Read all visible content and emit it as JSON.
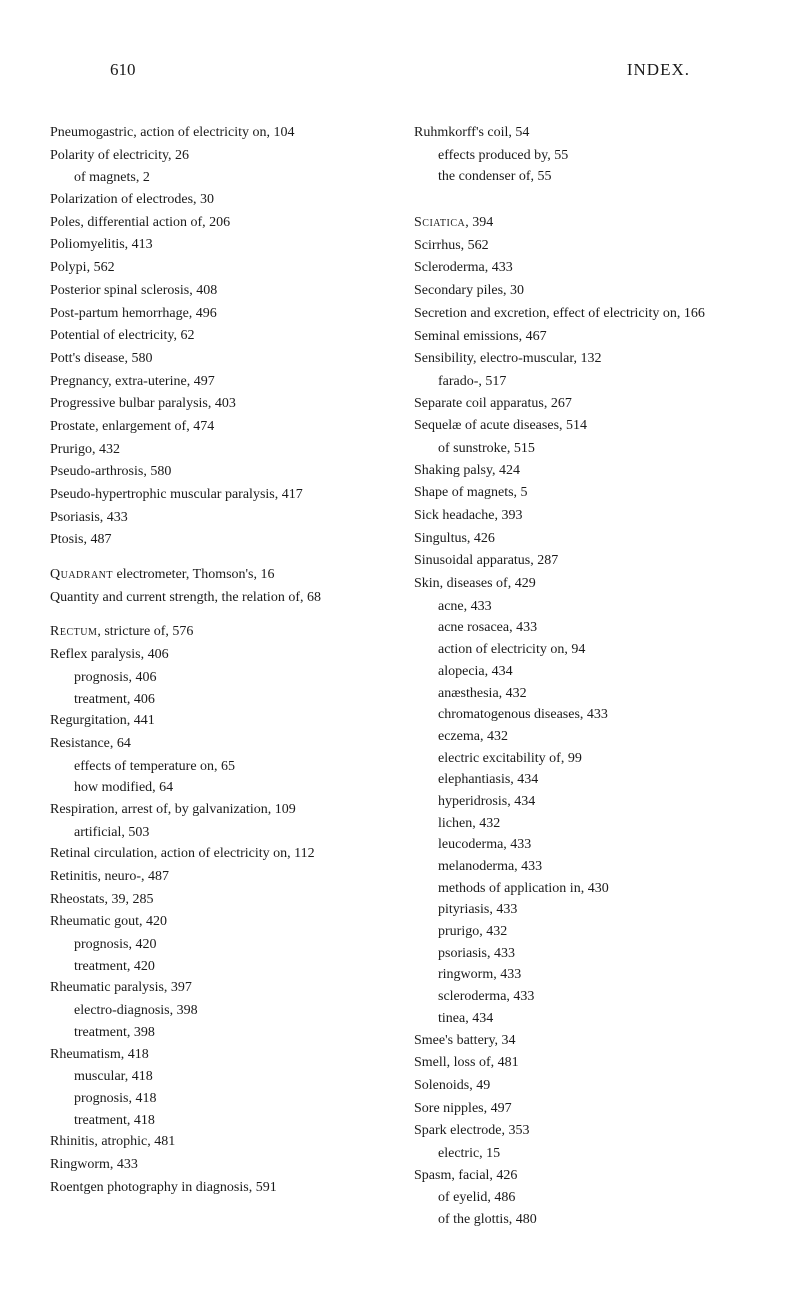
{
  "typography": {
    "body_font": "Georgia, Times New Roman, serif",
    "body_fontsize": 14,
    "header_fontsize": 17,
    "line_height": 1.55,
    "text_color": "#1a1a1a",
    "background_color": "#ffffff"
  },
  "header": {
    "page_number": "610",
    "title": "INDEX."
  },
  "left_column": [
    {
      "text": "Pneumogastric, action of electricity on, 104",
      "type": "entry"
    },
    {
      "text": "Polarity of electricity, 26",
      "type": "entry"
    },
    {
      "text": "of magnets, 2",
      "type": "sub1"
    },
    {
      "text": "Polarization of electrodes, 30",
      "type": "entry"
    },
    {
      "text": "Poles, differential action of, 206",
      "type": "entry"
    },
    {
      "text": "Poliomyelitis, 413",
      "type": "entry"
    },
    {
      "text": "Polypi, 562",
      "type": "entry"
    },
    {
      "text": "Posterior spinal sclerosis, 408",
      "type": "entry"
    },
    {
      "text": "Post-partum hemorrhage, 496",
      "type": "entry"
    },
    {
      "text": "Potential of electricity, 62",
      "type": "entry"
    },
    {
      "text": "Pott's disease, 580",
      "type": "entry"
    },
    {
      "text": "Pregnancy, extra-uterine, 497",
      "type": "entry"
    },
    {
      "text": "Progressive bulbar paralysis, 403",
      "type": "entry"
    },
    {
      "text": "Prostate, enlargement of, 474",
      "type": "entry"
    },
    {
      "text": "Prurigo, 432",
      "type": "entry"
    },
    {
      "text": "Pseudo-arthrosis, 580",
      "type": "entry"
    },
    {
      "text": "Pseudo-hypertrophic muscular paralysis, 417",
      "type": "entry"
    },
    {
      "text": "Psoriasis, 433",
      "type": "entry"
    },
    {
      "text": "Ptosis, 487",
      "type": "entry"
    },
    {
      "type": "gap"
    },
    {
      "smallcaps": "Quadrant",
      "rest": " electrometer, Thomson's, 16",
      "type": "entry"
    },
    {
      "text": "Quantity and current strength, the relation of, 68",
      "type": "entry"
    },
    {
      "type": "gap"
    },
    {
      "smallcaps": "Rectum",
      "rest": ", stricture of, 576",
      "type": "entry"
    },
    {
      "text": "Reflex paralysis, 406",
      "type": "entry"
    },
    {
      "text": "prognosis, 406",
      "type": "sub1"
    },
    {
      "text": "treatment, 406",
      "type": "sub1"
    },
    {
      "text": "Regurgitation, 441",
      "type": "entry"
    },
    {
      "text": "Resistance, 64",
      "type": "entry"
    },
    {
      "text": "effects of temperature on, 65",
      "type": "sub1"
    },
    {
      "text": "how modified, 64",
      "type": "sub1"
    },
    {
      "text": "Respiration, arrest of, by galvanization, 109",
      "type": "entry"
    },
    {
      "text": "artificial, 503",
      "type": "sub1"
    },
    {
      "text": "Retinal circulation, action of electricity on, 112",
      "type": "entry"
    },
    {
      "text": "Retinitis, neuro-, 487",
      "type": "entry"
    },
    {
      "text": "Rheostats, 39, 285",
      "type": "entry"
    },
    {
      "text": "Rheumatic gout, 420",
      "type": "entry"
    },
    {
      "text": "prognosis, 420",
      "type": "sub1"
    },
    {
      "text": "treatment, 420",
      "type": "sub1"
    },
    {
      "text": "Rheumatic paralysis, 397",
      "type": "entry"
    },
    {
      "text": "electro-diagnosis, 398",
      "type": "sub1"
    },
    {
      "text": "treatment, 398",
      "type": "sub1"
    },
    {
      "text": "Rheumatism, 418",
      "type": "entry"
    },
    {
      "text": "muscular, 418",
      "type": "sub1"
    },
    {
      "text": "prognosis, 418",
      "type": "sub1"
    },
    {
      "text": "treatment, 418",
      "type": "sub1"
    },
    {
      "text": "Rhinitis, atrophic, 481",
      "type": "entry"
    },
    {
      "text": "Ringworm, 433",
      "type": "entry"
    },
    {
      "text": "Roentgen photography in diagnosis, 591",
      "type": "entry"
    }
  ],
  "right_column": [
    {
      "text": "Ruhmkorff's coil, 54",
      "type": "entry"
    },
    {
      "text": "effects produced by, 55",
      "type": "sub1"
    },
    {
      "text": "the condenser of, 55",
      "type": "sub1"
    },
    {
      "type": "gap"
    },
    {
      "type": "gap"
    },
    {
      "smallcaps": "Sciatica",
      "rest": ", 394",
      "type": "entry"
    },
    {
      "text": "Scirrhus, 562",
      "type": "entry"
    },
    {
      "text": "Scleroderma, 433",
      "type": "entry"
    },
    {
      "text": "Secondary piles, 30",
      "type": "entry"
    },
    {
      "text": "Secretion and excretion, effect of electricity on, 166",
      "type": "entry"
    },
    {
      "text": "Seminal emissions, 467",
      "type": "entry"
    },
    {
      "text": "Sensibility, electro-muscular, 132",
      "type": "entry"
    },
    {
      "text": "farado-, 517",
      "type": "sub1"
    },
    {
      "text": "Separate coil apparatus, 267",
      "type": "entry"
    },
    {
      "text": "Sequelæ of acute diseases, 514",
      "type": "entry"
    },
    {
      "text": "of sunstroke, 515",
      "type": "sub1"
    },
    {
      "text": "Shaking palsy, 424",
      "type": "entry"
    },
    {
      "text": "Shape of magnets, 5",
      "type": "entry"
    },
    {
      "text": "Sick headache, 393",
      "type": "entry"
    },
    {
      "text": "Singultus, 426",
      "type": "entry"
    },
    {
      "text": "Sinusoidal apparatus, 287",
      "type": "entry"
    },
    {
      "text": "Skin, diseases of, 429",
      "type": "entry"
    },
    {
      "text": "acne, 433",
      "type": "sub1"
    },
    {
      "text": "acne rosacea, 433",
      "type": "sub1"
    },
    {
      "text": "action of electricity on, 94",
      "type": "sub1"
    },
    {
      "text": "alopecia, 434",
      "type": "sub1"
    },
    {
      "text": "anæsthesia, 432",
      "type": "sub1"
    },
    {
      "text": "chromatogenous diseases, 433",
      "type": "sub1"
    },
    {
      "text": "eczema, 432",
      "type": "sub1"
    },
    {
      "text": "electric excitability of, 99",
      "type": "sub1"
    },
    {
      "text": "elephantiasis, 434",
      "type": "sub1"
    },
    {
      "text": "hyperidrosis, 434",
      "type": "sub1"
    },
    {
      "text": "lichen, 432",
      "type": "sub1"
    },
    {
      "text": "leucoderma, 433",
      "type": "sub1"
    },
    {
      "text": "melanoderma, 433",
      "type": "sub1"
    },
    {
      "text": "methods of application in, 430",
      "type": "sub1"
    },
    {
      "text": "pityriasis, 433",
      "type": "sub1"
    },
    {
      "text": "prurigo, 432",
      "type": "sub1"
    },
    {
      "text": "psoriasis, 433",
      "type": "sub1"
    },
    {
      "text": "ringworm, 433",
      "type": "sub1"
    },
    {
      "text": "scleroderma, 433",
      "type": "sub1"
    },
    {
      "text": "tinea, 434",
      "type": "sub1"
    },
    {
      "text": "Smee's battery, 34",
      "type": "entry"
    },
    {
      "text": "Smell, loss of, 481",
      "type": "entry"
    },
    {
      "text": "Solenoids, 49",
      "type": "entry"
    },
    {
      "text": "Sore nipples, 497",
      "type": "entry"
    },
    {
      "text": "Spark electrode, 353",
      "type": "entry"
    },
    {
      "text": "electric, 15",
      "type": "sub1"
    },
    {
      "text": "Spasm, facial, 426",
      "type": "entry"
    },
    {
      "text": "of eyelid, 486",
      "type": "sub1"
    },
    {
      "text": "of the glottis, 480",
      "type": "sub1"
    }
  ]
}
